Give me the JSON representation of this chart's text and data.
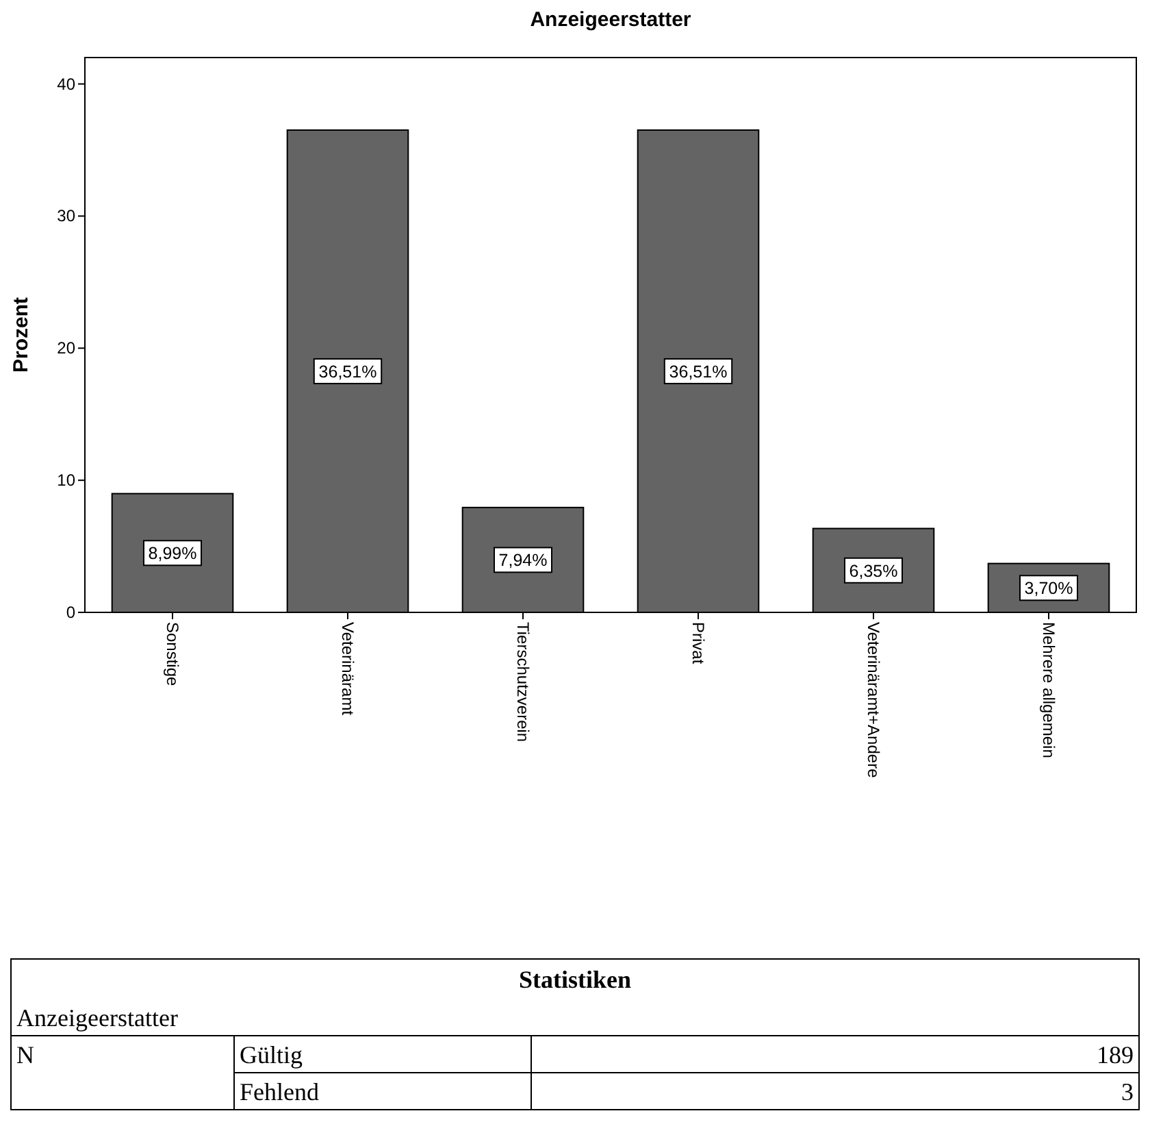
{
  "chart_data": [
    {
      "type": "bar",
      "title": "Anzeigeerstatter",
      "ylabel": "Prozent",
      "categories": [
        "Sonstige",
        "Veterinäramt",
        "Tierschutzverein",
        "Privat",
        "Veterinäramt+Andere",
        "Mehrere allgemein"
      ],
      "values": [
        8.99,
        36.51,
        7.94,
        36.51,
        6.35,
        3.7
      ],
      "value_labels": [
        "8,99%",
        "36,51%",
        "7,94%",
        "36,51%",
        "6,35%",
        "3,70%"
      ],
      "color": "#646464",
      "ylim": [
        0,
        42
      ],
      "yticks": [
        0,
        10,
        20,
        30,
        40
      ],
      "grid": false
    },
    {
      "type": "other",
      "title": "Statistiken",
      "subtitle": "Anzeigeerstatter",
      "annotations": [
        "N",
        "Gültig",
        "189",
        "Fehlend",
        "3"
      ]
    }
  ]
}
